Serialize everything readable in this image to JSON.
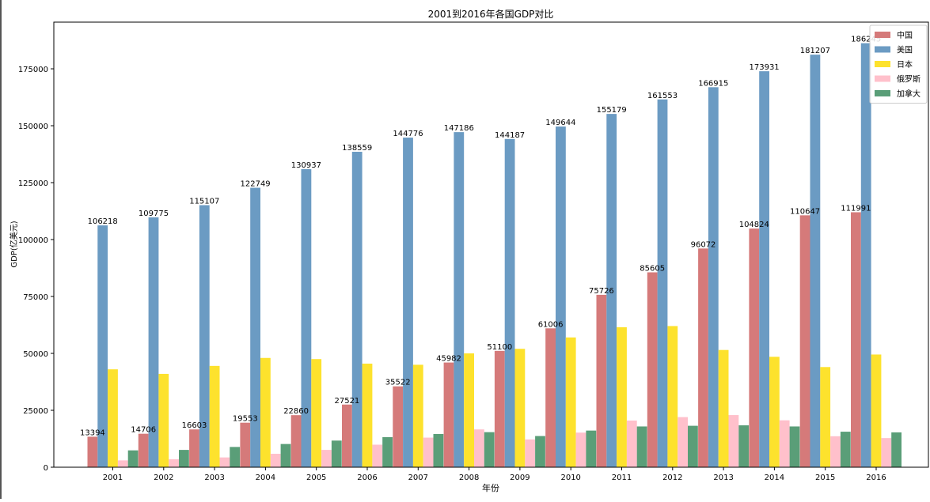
{
  "chart_data": {
    "type": "bar",
    "title": "2001到2016年各国GDP对比",
    "xlabel": "年份",
    "ylabel": "GDP(亿美元)",
    "categories": [
      "2001",
      "2002",
      "2003",
      "2004",
      "2005",
      "2006",
      "2007",
      "2008",
      "2009",
      "2010",
      "2011",
      "2012",
      "2013",
      "2014",
      "2015",
      "2016"
    ],
    "ylim": [
      0,
      195500
    ],
    "yticks": [
      0,
      25000,
      50000,
      75000,
      100000,
      125000,
      150000,
      175000
    ],
    "legend_position": "top-right",
    "series": [
      {
        "name": "中国",
        "color": "#d57a7a",
        "labeled": true,
        "values": [
          13394,
          14706,
          16603,
          19553,
          22860,
          27521,
          35522,
          45982,
          51100,
          61006,
          75726,
          85605,
          96072,
          104824,
          110647,
          111991
        ]
      },
      {
        "name": "美国",
        "color": "#6b9bc3",
        "labeled": true,
        "values": [
          106218,
          109775,
          115107,
          122749,
          130937,
          138559,
          144776,
          147186,
          144187,
          149644,
          155179,
          161553,
          166915,
          173931,
          181207,
          186245
        ]
      },
      {
        "name": "日本",
        "color": "#fde22d",
        "labeled": false,
        "values": [
          43000,
          41000,
          44500,
          48000,
          47500,
          45500,
          45000,
          50000,
          52000,
          57000,
          61500,
          62000,
          51500,
          48500,
          44000,
          49500
        ]
      },
      {
        "name": "俄罗斯",
        "color": "#ffc0cb",
        "labeled": false,
        "values": [
          3000,
          3500,
          4300,
          5900,
          7600,
          9900,
          13000,
          16600,
          12200,
          15200,
          20500,
          22000,
          22900,
          20600,
          13600,
          12800
        ]
      },
      {
        "name": "加拿大",
        "color": "#5a9e78",
        "labeled": false,
        "values": [
          7400,
          7600,
          8900,
          10200,
          11700,
          13200,
          14600,
          15400,
          13700,
          16100,
          17900,
          18200,
          18400,
          17900,
          15600,
          15300
        ]
      }
    ]
  }
}
